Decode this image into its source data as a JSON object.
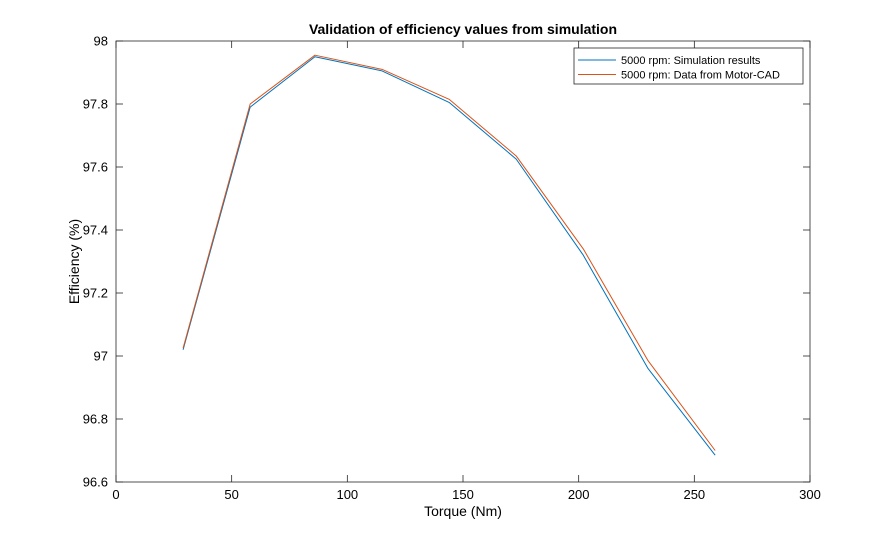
{
  "chart_data": {
    "type": "line",
    "title": "Validation of efficiency values from simulation",
    "xlabel": "Torque (Nm)",
    "ylabel": "Efficiency (%)",
    "xlim": [
      0,
      300
    ],
    "ylim": [
      96.6,
      98
    ],
    "xticks": [
      0,
      50,
      100,
      150,
      200,
      250,
      300
    ],
    "yticks": [
      96.6,
      96.8,
      97,
      97.2,
      97.4,
      97.6,
      97.8,
      98
    ],
    "xtick_labels": [
      "0",
      "50",
      "100",
      "150",
      "200",
      "250",
      "300"
    ],
    "ytick_labels": [
      "96.6",
      "96.8",
      "97",
      "97.2",
      "97.4",
      "97.6",
      "97.8",
      "98"
    ],
    "grid": false,
    "legend_position": "top-right",
    "x": [
      29,
      58,
      86,
      115,
      144,
      173,
      202,
      230,
      259
    ],
    "series": [
      {
        "name": "5000 rpm: Simulation results",
        "color": "#0072BD",
        "values": [
          97.02,
          97.79,
          97.95,
          97.905,
          97.805,
          97.625,
          97.32,
          96.96,
          96.685
        ]
      },
      {
        "name": "5000 rpm: Data from Motor-CAD",
        "color": "#D95319",
        "values": [
          97.025,
          97.8,
          97.955,
          97.91,
          97.815,
          97.635,
          97.34,
          96.985,
          96.7
        ]
      }
    ]
  }
}
